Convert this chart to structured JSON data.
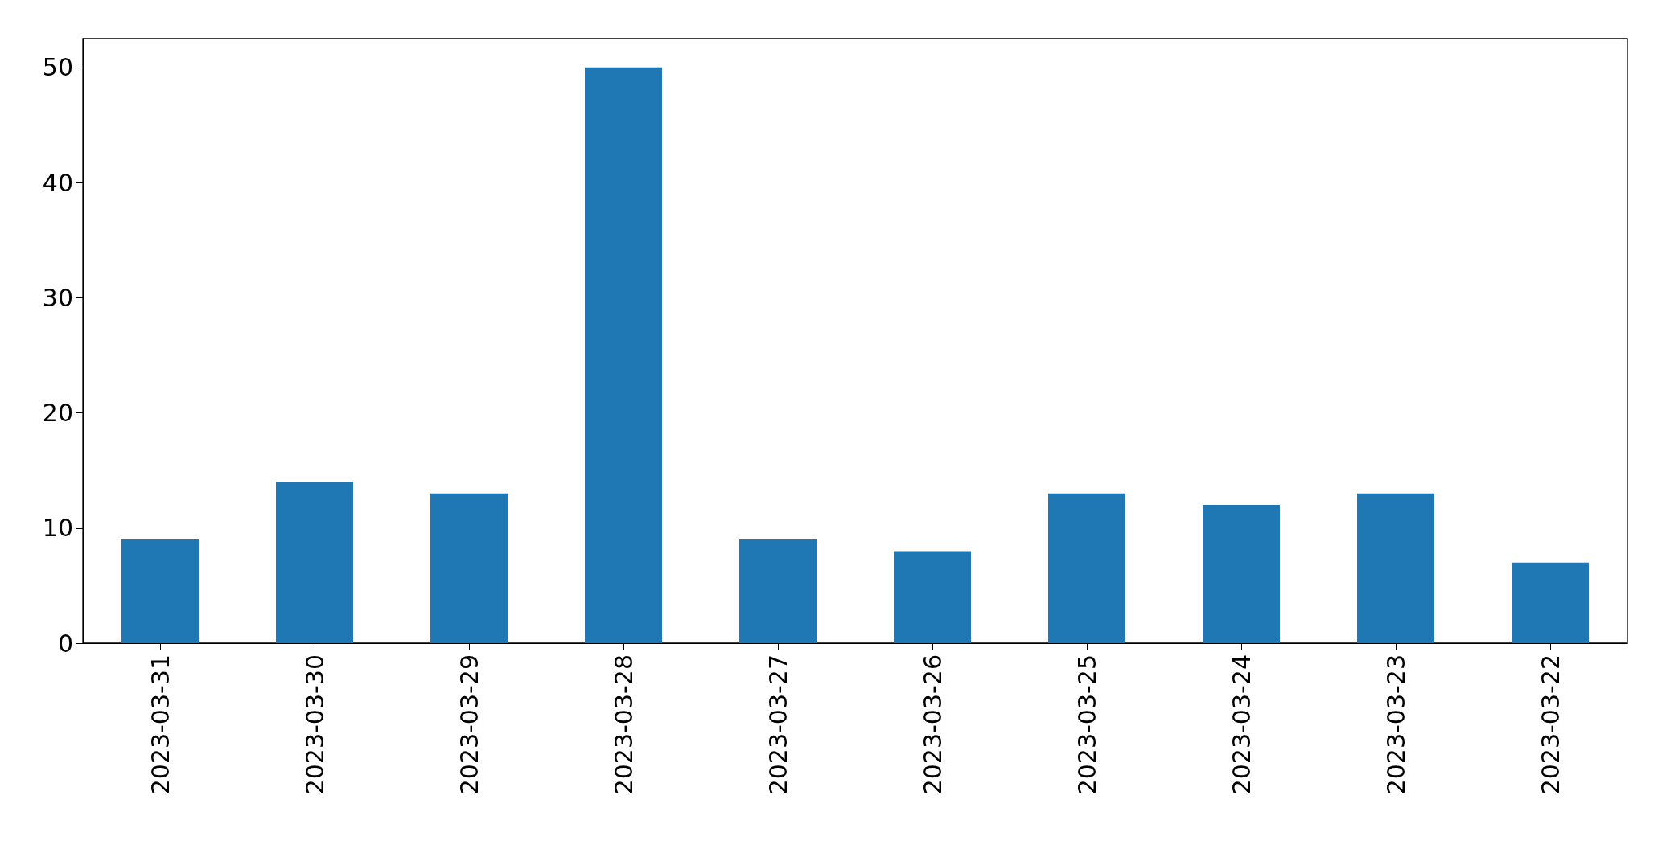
{
  "chart_data": {
    "type": "bar",
    "categories": [
      "2023-03-31",
      "2023-03-30",
      "2023-03-29",
      "2023-03-28",
      "2023-03-27",
      "2023-03-26",
      "2023-03-25",
      "2023-03-24",
      "2023-03-23",
      "2023-03-22"
    ],
    "values": [
      9,
      14,
      13,
      50,
      9,
      8,
      13,
      12,
      13,
      7
    ],
    "color": "#1f77b4",
    "ylim": [
      0,
      52.5
    ],
    "yticks": [
      0,
      10,
      20,
      30,
      40,
      50
    ],
    "grid": false
  }
}
